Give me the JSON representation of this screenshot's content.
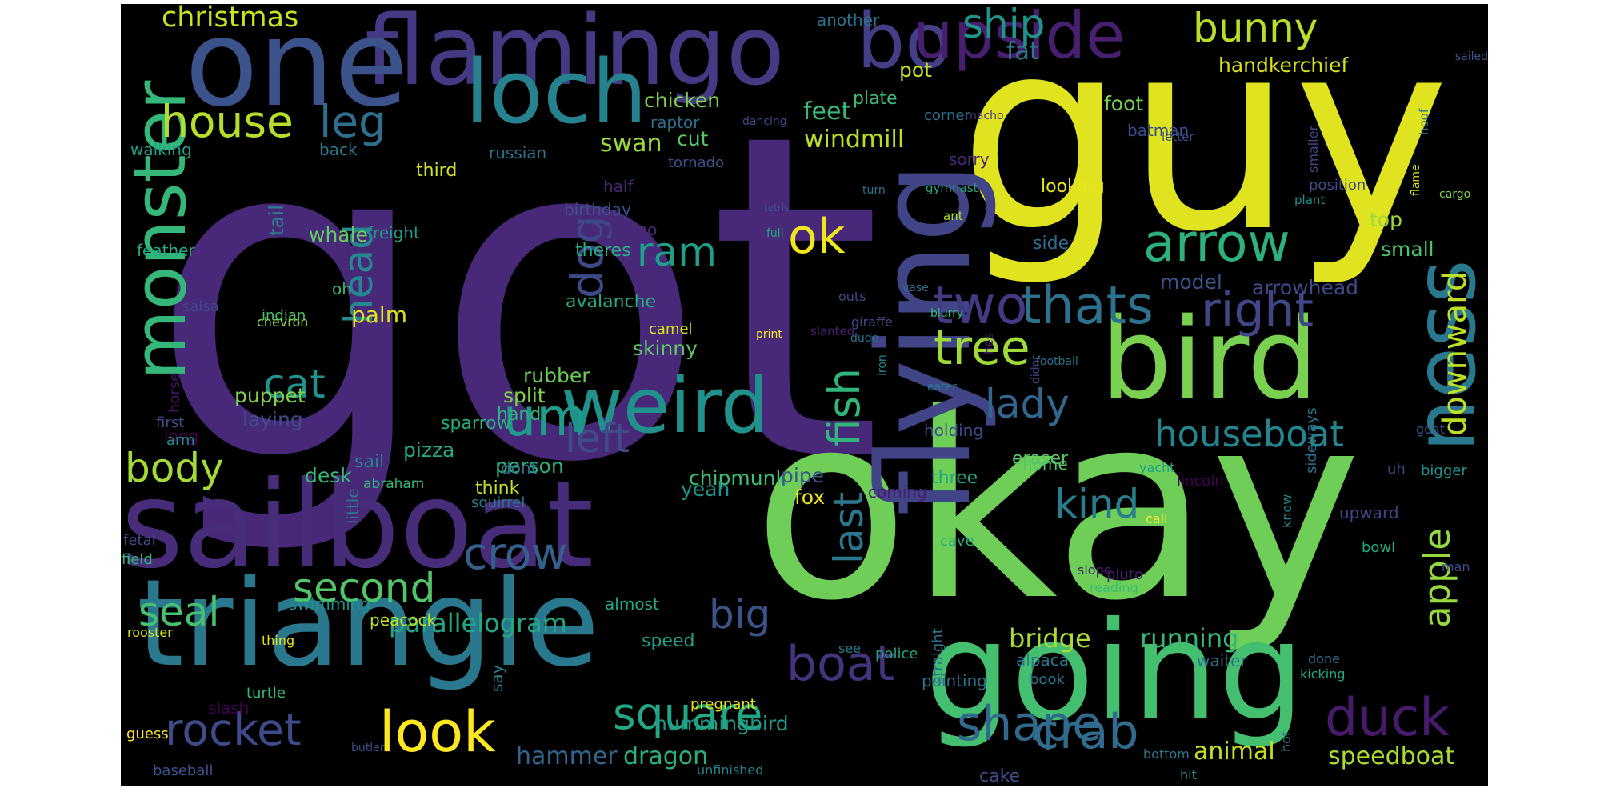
{
  "background": "#000000",
  "words": [
    {
      "t": "got",
      "c": "#482878"
    },
    {
      "t": "guy",
      "c": "#e0e320"
    },
    {
      "t": "okay",
      "c": "#6ece58"
    },
    {
      "t": "sailboat",
      "c": "#472c7a"
    },
    {
      "t": "triangle",
      "c": "#2a788e"
    },
    {
      "t": "going",
      "c": "#44bf70"
    },
    {
      "t": "flamingo",
      "c": "#443a83"
    },
    {
      "t": "one",
      "c": "#3b528b"
    },
    {
      "t": "bird",
      "c": "#7ad151"
    },
    {
      "t": "flying",
      "c": "#414487"
    },
    {
      "t": "weird",
      "c": "#21918c"
    },
    {
      "t": "loch",
      "c": "#26828e"
    },
    {
      "t": "bo",
      "c": "#433e85"
    },
    {
      "t": "upside",
      "c": "#481f70"
    },
    {
      "t": "monster",
      "c": "#35b779"
    },
    {
      "t": "ness",
      "c": "#2a788e"
    },
    {
      "t": "crow",
      "c": "#355f8d"
    },
    {
      "t": "arrow",
      "c": "#2db27d"
    },
    {
      "t": "two",
      "c": "#443983"
    },
    {
      "t": "thats",
      "c": "#2c728e"
    },
    {
      "t": "right",
      "c": "#404688"
    },
    {
      "t": "tree",
      "c": "#9fda3a"
    },
    {
      "t": "look",
      "c": "#fde725"
    },
    {
      "t": "shape",
      "c": "#31688e"
    },
    {
      "t": "square",
      "c": "#22a884"
    },
    {
      "t": "boat",
      "c": "#46337e"
    },
    {
      "t": "duck",
      "c": "#481a6c"
    },
    {
      "t": "crab",
      "c": "#2f6c8e"
    },
    {
      "t": "rocket",
      "c": "#3e4a89"
    },
    {
      "t": "dog",
      "c": "#3e4989"
    },
    {
      "t": "house",
      "c": "#b5de2b"
    },
    {
      "t": "leg",
      "c": "#2e6f8e"
    },
    {
      "t": "ship",
      "c": "#1f948c"
    },
    {
      "t": "bunny",
      "c": "#b8de29"
    },
    {
      "t": "um",
      "c": "#1e9b8a"
    },
    {
      "t": "ok",
      "c": "#f1e51d"
    },
    {
      "t": "ram",
      "c": "#1f9e89"
    },
    {
      "t": "houseboat",
      "c": "#25858e"
    },
    {
      "t": "left",
      "c": "#3e4c8a"
    },
    {
      "t": "kind",
      "c": "#277f8e"
    },
    {
      "t": "lady",
      "c": "#31668e"
    },
    {
      "t": "fish",
      "c": "#31b57b"
    },
    {
      "t": "seal",
      "c": "#48c16e"
    },
    {
      "t": "second",
      "c": "#52c569"
    },
    {
      "t": "big",
      "c": "#3b528b"
    },
    {
      "t": "body",
      "c": "#a2da37"
    },
    {
      "t": "cat",
      "c": "#20938c"
    },
    {
      "t": "head",
      "c": "#23898e"
    },
    {
      "t": "apple",
      "c": "#95d840"
    },
    {
      "t": "downward",
      "c": "#bddf26"
    },
    {
      "t": "last",
      "c": "#2a778e"
    },
    {
      "t": "hammer",
      "c": "#32648e"
    },
    {
      "t": "dragon",
      "c": "#2ab07f"
    },
    {
      "t": "speedboat",
      "c": "#aadc32"
    },
    {
      "t": "animal",
      "c": "#c5e021"
    },
    {
      "t": "hummingbird",
      "c": "#1f998a"
    },
    {
      "t": "parallelogram",
      "c": "#22a785"
    },
    {
      "t": "bridge",
      "c": "#a8db34"
    },
    {
      "t": "running",
      "c": "#35b779"
    },
    {
      "t": "christmas",
      "c": "#cae11f"
    },
    {
      "t": "fat",
      "c": "#297a8e"
    },
    {
      "t": "pot",
      "c": "#c0df25"
    },
    {
      "t": "foot",
      "c": "#75d054"
    },
    {
      "t": "handkerchief",
      "c": "#d8e219"
    },
    {
      "t": "chicken",
      "c": "#7fd34e"
    },
    {
      "t": "raptor",
      "c": "#2d708e"
    },
    {
      "t": "cut",
      "c": "#58c765"
    },
    {
      "t": "feet",
      "c": "#3aba76"
    },
    {
      "t": "swan",
      "c": "#9bd93c"
    },
    {
      "t": "windmill",
      "c": "#bade28"
    },
    {
      "t": "plate",
      "c": "#3fbc73"
    },
    {
      "t": "corner",
      "c": "#2e6e8e"
    },
    {
      "t": "batman",
      "c": "#3c4f8a"
    },
    {
      "t": "walking",
      "c": "#1fa188"
    },
    {
      "t": "back",
      "c": "#2a788e"
    },
    {
      "t": "third",
      "c": "#d2e21b"
    },
    {
      "t": "russian",
      "c": "#2c738e"
    },
    {
      "t": "tornado",
      "c": "#3b518b"
    },
    {
      "t": "sorry",
      "c": "#482576"
    },
    {
      "t": "looking",
      "c": "#eae51a"
    },
    {
      "t": "half",
      "c": "#482475"
    },
    {
      "t": "birthday",
      "c": "#3b528b"
    },
    {
      "t": "kangaroo",
      "c": "#472a7a"
    },
    {
      "t": "whale",
      "c": "#63cb5f"
    },
    {
      "t": "freight",
      "c": "#1e9c89"
    },
    {
      "t": "tail",
      "c": "#287d8e"
    },
    {
      "t": "feather",
      "c": "#23a983"
    },
    {
      "t": "oh",
      "c": "#38b977"
    },
    {
      "t": "salsa",
      "c": "#3f4889"
    },
    {
      "t": "indian",
      "c": "#4ac16d"
    },
    {
      "t": "chevron",
      "c": "#84d44b"
    },
    {
      "t": "palm",
      "c": "#dde318"
    },
    {
      "t": "theres",
      "c": "#27ad81"
    },
    {
      "t": "avalanche",
      "c": "#25ab82"
    },
    {
      "t": "skinny",
      "c": "#5ec962"
    },
    {
      "t": "top",
      "c": "#a0da39"
    },
    {
      "t": "small",
      "c": "#4ec36b"
    },
    {
      "t": "model",
      "c": "#3b528b"
    },
    {
      "t": "arrowhead",
      "c": "#3e4a89"
    },
    {
      "t": "side",
      "c": "#2e6d8e"
    },
    {
      "t": "camel",
      "c": "#d2e21b"
    },
    {
      "t": "rubber",
      "c": "#6ccd5a"
    },
    {
      "t": "split",
      "c": "#81d34d"
    },
    {
      "t": "puppet",
      "c": "#7fd34e"
    },
    {
      "t": "laying",
      "c": "#3d4d8a"
    },
    {
      "t": "horse",
      "c": "#471365"
    },
    {
      "t": "first",
      "c": "#3e4c8a"
    },
    {
      "t": "long",
      "c": "#440154"
    },
    {
      "t": "arm",
      "c": "#20928c"
    },
    {
      "t": "sparrow",
      "c": "#26ad81"
    },
    {
      "t": "hand",
      "c": "#2fb47c"
    },
    {
      "t": "pizza",
      "c": "#22a884"
    },
    {
      "t": "person",
      "c": "#29af7f"
    },
    {
      "t": "chipmunk",
      "c": "#3dbc74"
    },
    {
      "t": "yeah",
      "c": "#1f948c"
    },
    {
      "t": "pipe",
      "c": "#3a548c"
    },
    {
      "t": "fox",
      "c": "#eae51a"
    },
    {
      "t": "coming",
      "c": "#481d6f"
    },
    {
      "t": "holding",
      "c": "#3e4989"
    },
    {
      "t": "eraser",
      "c": "#56c667"
    },
    {
      "t": "three",
      "c": "#20a486"
    },
    {
      "t": "home",
      "c": "#54c568"
    },
    {
      "t": "desk",
      "c": "#37b878"
    },
    {
      "t": "sail",
      "c": "#26828e"
    },
    {
      "t": "think",
      "c": "#c2df23"
    },
    {
      "t": "dont",
      "c": "#2e6e8e"
    },
    {
      "t": "squirrel",
      "c": "#2a788e"
    },
    {
      "t": "abraham",
      "c": "#35b779"
    },
    {
      "t": "little",
      "c": "#2a788e"
    },
    {
      "t": "fetal",
      "c": "#3e4a89"
    },
    {
      "t": "field",
      "c": "#35b779"
    },
    {
      "t": "swimming",
      "c": "#21918c"
    },
    {
      "t": "almost",
      "c": "#22a884"
    },
    {
      "t": "peacock",
      "c": "#c2df23"
    },
    {
      "t": "rooster",
      "c": "#d5e21a"
    },
    {
      "t": "thing",
      "c": "#e7e419"
    },
    {
      "t": "speed",
      "c": "#1f9f88"
    },
    {
      "t": "pointing",
      "c": "#2d708e"
    },
    {
      "t": "alpaca",
      "c": "#2a788e"
    },
    {
      "t": "waiter",
      "c": "#2c728e"
    },
    {
      "t": "slash",
      "c": "#440154"
    },
    {
      "t": "turtle",
      "c": "#35b779"
    },
    {
      "t": "say",
      "c": "#27808e"
    },
    {
      "t": "pregnant",
      "c": "#e5e419"
    },
    {
      "t": "guess",
      "c": "#fde725"
    },
    {
      "t": "butler",
      "c": "#3e4c8a"
    },
    {
      "t": "baseball",
      "c": "#3b528b"
    },
    {
      "t": "unfinished",
      "c": "#26828e"
    },
    {
      "t": "cake",
      "c": "#3e4c8a"
    },
    {
      "t": "straight",
      "c": "#2c728e"
    },
    {
      "t": "police",
      "c": "#22a884"
    },
    {
      "t": "see",
      "c": "#287c8e"
    },
    {
      "t": "book",
      "c": "#2c728e"
    },
    {
      "t": "bottom",
      "c": "#2a788e"
    },
    {
      "t": "hot",
      "c": "#2a788e"
    },
    {
      "t": "hit",
      "c": "#24878e"
    },
    {
      "t": "done",
      "c": "#31688e"
    },
    {
      "t": "kicking",
      "c": "#22a884"
    },
    {
      "t": "reading",
      "c": "#3dbc74"
    },
    {
      "t": "slope",
      "c": "#482173"
    },
    {
      "t": "pluto",
      "c": "#481d6f"
    },
    {
      "t": "man",
      "c": "#3e4c8a"
    },
    {
      "t": "bowl",
      "c": "#27ad81"
    },
    {
      "t": "upward",
      "c": "#404588"
    },
    {
      "t": "sideways",
      "c": "#2c728e"
    },
    {
      "t": "know",
      "c": "#23888e"
    },
    {
      "t": "call",
      "c": "#fde725"
    },
    {
      "t": "cave",
      "c": "#27ad81"
    },
    {
      "t": "yacht",
      "c": "#1f9e89"
    },
    {
      "t": "lincoln",
      "c": "#440154"
    },
    {
      "t": "uh",
      "c": "#3e4989"
    },
    {
      "t": "bigger",
      "c": "#20938c"
    },
    {
      "t": "goat",
      "c": "#3a548c"
    },
    {
      "t": "didnt",
      "c": "#404688"
    },
    {
      "t": "football",
      "c": "#2c728e"
    },
    {
      "t": "hes",
      "c": "#481b6d"
    },
    {
      "t": "eater",
      "c": "#2a788e"
    },
    {
      "t": "iron",
      "c": "#23898e"
    },
    {
      "t": "slanted",
      "c": "#482173"
    },
    {
      "t": "dude",
      "c": "#2c728e"
    },
    {
      "t": "blurry",
      "c": "#35b779"
    },
    {
      "t": "giraffe",
      "c": "#3e4a89"
    },
    {
      "t": "print",
      "c": "#fde725"
    },
    {
      "t": "vase",
      "c": "#2c728e"
    },
    {
      "t": "outs",
      "c": "#3e4a89"
    },
    {
      "t": "full",
      "c": "#22a884"
    },
    {
      "t": "tetris",
      "c": "#3b528b"
    },
    {
      "t": "ant",
      "c": "#b5de2b"
    },
    {
      "t": "gymnast",
      "c": "#22a884"
    },
    {
      "t": "turn",
      "c": "#2c728e"
    },
    {
      "t": "nacho",
      "c": "#443a83"
    },
    {
      "t": "letter",
      "c": "#3e4a89"
    },
    {
      "t": "position",
      "c": "#3e4c8a"
    },
    {
      "t": "plant",
      "c": "#20928c"
    },
    {
      "t": "smaller",
      "c": "#3e4a89"
    },
    {
      "t": "hoof",
      "c": "#2c728e"
    },
    {
      "t": "flame",
      "c": "#d5e21a"
    },
    {
      "t": "cargo",
      "c": "#84d44b"
    },
    {
      "t": "sailed",
      "c": "#3b528b"
    },
    {
      "t": "dancing",
      "c": "#3e4a89"
    },
    {
      "t": "another",
      "c": "#2c728e"
    }
  ]
}
